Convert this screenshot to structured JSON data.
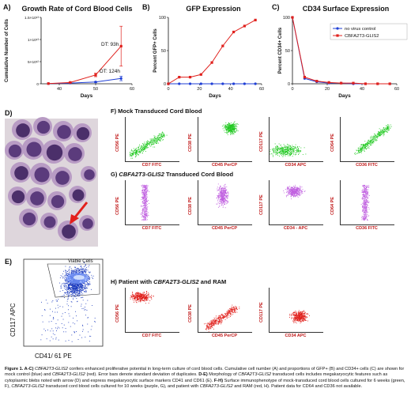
{
  "panels": {
    "A": {
      "label": "A)",
      "title": "Growth Rate of Cord Blood Cells"
    },
    "B": {
      "label": "B)",
      "title": "GFP Expression"
    },
    "C": {
      "label": "C)",
      "title": "CD34 Surface Expression"
    },
    "D": {
      "label": "D)"
    },
    "E": {
      "label": "E)",
      "gate_label": "Viable Cells",
      "ylabel": "CD117 APC",
      "xlabel": "CD41/ 61 PE"
    }
  },
  "legend": {
    "items": [
      "no virus control",
      "CBFA2T3-GLIS2"
    ]
  },
  "colors": {
    "control": "#1f3fd6",
    "fusion": "#e0201c",
    "mock": "#22c922",
    "fusion_cells": "#c060e0",
    "patient": "#e0201c",
    "e_density": "#1e3dbf"
  },
  "chart_data": [
    {
      "type": "line",
      "title": "Growth Rate of Cord Blood Cells",
      "xlabel": "Days",
      "ylabel": "Cumulative Number of Cells",
      "xlim": [
        35,
        60
      ],
      "ylim": [
        0,
        15000000000000.0
      ],
      "xticks": [
        "40",
        "50",
        "60"
      ],
      "yticks": [
        "0",
        "5×10¹²",
        "1×10¹³",
        "1.5×10¹³"
      ],
      "annotations": [
        "DT: 93h",
        "DT: 124h"
      ],
      "series": [
        {
          "name": "no virus control",
          "x": [
            37,
            43,
            50,
            57
          ],
          "y": [
            50000000000.0,
            150000000000.0,
            400000000000.0,
            1200000000000.0
          ],
          "err": [
            0,
            0,
            100000000000.0,
            500000000000.0
          ]
        },
        {
          "name": "CBFA2T3-GLIS2",
          "x": [
            37,
            43,
            50,
            57
          ],
          "y": [
            50000000000.0,
            300000000000.0,
            2000000000000.0,
            8500000000000.0
          ],
          "err": [
            0,
            100000000000.0,
            400000000000.0,
            4500000000000.0
          ]
        }
      ]
    },
    {
      "type": "line",
      "title": "GFP Expression",
      "xlabel": "Days",
      "ylabel": "Percent GFP+ Cells",
      "xlim": [
        0,
        60
      ],
      "ylim": [
        0,
        100
      ],
      "xticks": [
        "0",
        "20",
        "40",
        "60"
      ],
      "yticks": [
        "0",
        "50",
        "100"
      ],
      "series": [
        {
          "name": "no virus control",
          "x": [
            0,
            7,
            14,
            21,
            28,
            35,
            42,
            49,
            56
          ],
          "y": [
            0,
            0,
            0,
            0,
            0,
            0,
            0,
            0,
            0
          ]
        },
        {
          "name": "CBFA2T3-GLIS2",
          "x": [
            0,
            7,
            14,
            21,
            28,
            35,
            42,
            49,
            56
          ],
          "y": [
            0,
            10,
            10,
            14,
            32,
            57,
            78,
            87,
            96
          ]
        }
      ]
    },
    {
      "type": "line",
      "title": "CD34 Surface Expression",
      "xlabel": "Days",
      "ylabel": "Percent CD34+ Cells",
      "xlim": [
        0,
        60
      ],
      "ylim": [
        0,
        100
      ],
      "xticks": [
        "0",
        "20",
        "40",
        "60"
      ],
      "yticks": [
        "0",
        "50",
        "100"
      ],
      "series": [
        {
          "name": "no virus control",
          "x": [
            0,
            7,
            14,
            21,
            28,
            35,
            42,
            49,
            56
          ],
          "y": [
            100,
            8,
            3,
            1,
            1,
            0,
            0,
            0,
            0
          ]
        },
        {
          "name": "CBFA2T3-GLIS2",
          "x": [
            0,
            7,
            14,
            21,
            28,
            35,
            42,
            49,
            56
          ],
          "y": [
            100,
            10,
            4,
            2,
            1,
            1,
            0,
            0,
            0
          ]
        }
      ]
    }
  ],
  "flow": {
    "F": {
      "title": "F) Mock Transduced Cord Blood",
      "plots": [
        {
          "y": "CD56 PE",
          "x": "CD7 FITC"
        },
        {
          "y": "CD38 PE",
          "x": "CD45 PerCP"
        },
        {
          "y": "CD117 PE",
          "x": "CD34 APC"
        },
        {
          "y": "CD64 PE",
          "x": "CD36 FITC"
        }
      ]
    },
    "G": {
      "title_prefix": "G) ",
      "title_italic": "CBFA2T3-GLIS2",
      "title_suffix": " Transduced Cord Blood",
      "plots": [
        {
          "y": "CD56 PE",
          "x": "CD7 FITC"
        },
        {
          "y": "CD38 PE",
          "x": "CD45 PerCP"
        },
        {
          "y": "CD117 PE",
          "x": "CD34 - APC"
        },
        {
          "y": "CD64 PE",
          "x": "CD36 FITC"
        }
      ]
    },
    "H": {
      "title_prefix": "H) Patient with ",
      "title_italic": "CBFA2T3-GLIS2",
      "title_suffix": " and RAM",
      "plots": [
        {
          "y": "CD56 PE",
          "x": "CD7 FITC"
        },
        {
          "y": "CD38 PE",
          "x": "CD45 PerCP"
        },
        {
          "y": "CD117 PE",
          "x": "CD34 APC"
        }
      ]
    }
  },
  "caption": {
    "lead": "Figure 1. A-C)",
    "s1_italic": "CBFA2T3-GLIS2",
    "s1": " confers enhanced proliferative potential in long-term culture of cord blood cells. Cumulative cell number (A) and proportions of GFP+ (B) and CD34+ cells (C) are shown for mock control (blue) and ",
    "s2_italic": "CBFA2T3-GLIS2",
    "s2": " (red). Error bars denote standard deviation of duplicates. ",
    "de": "D-E)",
    "s3": " Morphology of ",
    "s4_italic": "CBFA2T3-GLIS2",
    "s4": " transduced cells includes megakaryocytic features such as cytoplasmic blebs noted with arrow (D) and express megakaryocytic surface markers CD41 and CD61 (E). ",
    "fh": "F-H)",
    "s5": " Surface immunophenotype of mock-transduced cord blood cells cultured for 6 weeks (green, F), ",
    "s6_italic": "CBFA2T3-GLIS2",
    "s6": " transduced cord blood cells cultured for 10 weeks (purple, G), and patient with ",
    "s7_italic": "CBFA2T3-GLIS2",
    "s7": " and RAM (red, H). Patient data for CD64 and CD36 not available."
  }
}
